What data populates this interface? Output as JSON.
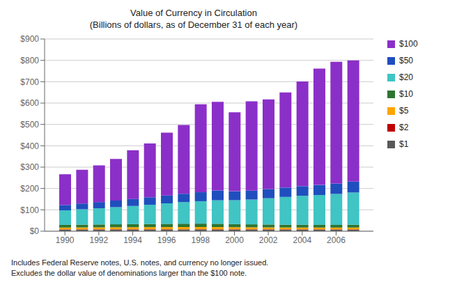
{
  "chart_data": {
    "type": "bar",
    "stacked": true,
    "title": "Value of Currency in Circulation",
    "subtitle": "(Billions of dollars, as of December 31 of each year)",
    "annotations": [
      "Includes Federal Reserve notes, U.S. notes, and currency no longer issued.",
      "Excludes the dollar value of denominations larger than the $100 note."
    ],
    "x": [
      1990,
      1991,
      1992,
      1993,
      1994,
      1995,
      1996,
      1997,
      1998,
      1999,
      2000,
      2001,
      2002,
      2003,
      2004,
      2005,
      2006,
      2007
    ],
    "xlim": [
      1988.8,
      2008.2
    ],
    "xticks": [
      1990,
      1992,
      1994,
      1996,
      1998,
      2000,
      2002,
      2004,
      2006
    ],
    "ylim": [
      0,
      900
    ],
    "yticks": [
      {
        "value": 0,
        "label": "$0"
      },
      {
        "value": 100,
        "label": "$100"
      },
      {
        "value": 200,
        "label": "$200"
      },
      {
        "value": 300,
        "label": "$300"
      },
      {
        "value": 400,
        "label": "$400"
      },
      {
        "value": 500,
        "label": "$500"
      },
      {
        "value": 600,
        "label": "$600"
      },
      {
        "value": 700,
        "label": "$700"
      },
      {
        "value": 800,
        "label": "$800"
      },
      {
        "value": 900,
        "label": "$900"
      }
    ],
    "grid": true,
    "legend": "right",
    "series": [
      {
        "name": "$1",
        "color": "#595959",
        "values": [
          7.5,
          7.6,
          7.7,
          7.8,
          7.8,
          7.9,
          7.9,
          7.9,
          7.9,
          7.8,
          7.7,
          7.6,
          7.5,
          7.4,
          7.3,
          7.2,
          7.1,
          7.0
        ]
      },
      {
        "name": "$2",
        "color": "#be0000",
        "values": [
          1.1,
          1.2,
          1.2,
          1.3,
          1.3,
          1.3,
          1.4,
          1.4,
          1.4,
          1.4,
          1.4,
          1.4,
          1.4,
          1.4,
          1.4,
          1.5,
          1.5,
          1.6
        ]
      },
      {
        "name": "$5",
        "color": "#ffa500",
        "values": [
          8.5,
          8.8,
          9.0,
          9.3,
          9.5,
          9.8,
          10.0,
          10.2,
          10.3,
          10.0,
          9.5,
          9.2,
          8.9,
          8.6,
          8.4,
          8.3,
          8.3,
          8.5
        ]
      },
      {
        "name": "$10",
        "color": "#2e7532",
        "values": [
          12.5,
          13.0,
          13.5,
          14.0,
          14.5,
          14.8,
          15.2,
          15.5,
          15.8,
          15.5,
          14.5,
          14.0,
          13.5,
          13.0,
          12.8,
          12.5,
          12.5,
          13.0
        ]
      },
      {
        "name": "$20",
        "color": "#40c4c4",
        "values": [
          68.0,
          72.0,
          76.0,
          80.0,
          85.0,
          90.0,
          96.0,
          101.0,
          105.0,
          110.0,
          112.0,
          116.0,
          123.0,
          130.0,
          136.0,
          140.0,
          145.0,
          151.0
        ]
      },
      {
        "name": "$50",
        "color": "#1f4fbe",
        "values": [
          25.0,
          27.0,
          29.0,
          31.0,
          33.0,
          35.0,
          37.0,
          39.0,
          42.0,
          46.0,
          42.0,
          42.0,
          43.0,
          44.0,
          45.0,
          47.0,
          49.0,
          51.0
        ]
      },
      {
        "name": "$100",
        "color": "#8B2FC9",
        "values": [
          144.0,
          158.0,
          172.0,
          195.0,
          228.0,
          252.0,
          294.0,
          322.0,
          412.0,
          415.0,
          370.0,
          418.0,
          420.0,
          445.0,
          490.0,
          545.0,
          570.0,
          568.0
        ]
      }
    ]
  }
}
